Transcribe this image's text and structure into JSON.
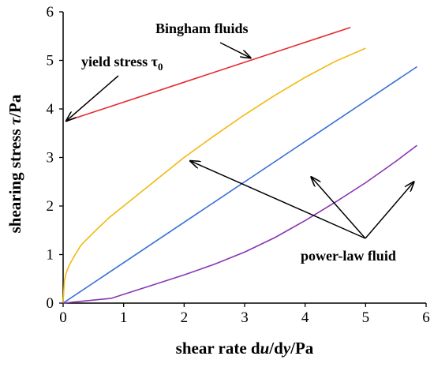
{
  "chart_data": {
    "type": "line",
    "title": "",
    "xlabel": "shear rate  du/dy/Pa",
    "ylabel": "shearing stress  τ/Pa",
    "xlim": [
      0,
      6
    ],
    "ylim": [
      0,
      6
    ],
    "x_ticks": [
      "0",
      "1",
      "2",
      "3",
      "4",
      "5",
      "6"
    ],
    "y_ticks": [
      "0",
      "1",
      "2",
      "3",
      "4",
      "5",
      "6"
    ],
    "grid": false,
    "legend": "none",
    "series": [
      {
        "color": "#e8282b",
        "x": [
          0.05,
          4.75
        ],
        "y": [
          3.75,
          5.68
        ]
      },
      {
        "color": "#f2b90f",
        "x": [
          0.0,
          0.02,
          0.05,
          0.1,
          0.2,
          0.3,
          0.5,
          0.75,
          1.0,
          1.5,
          2.0,
          2.5,
          3.0,
          3.5,
          4.0,
          4.5,
          5.0
        ],
        "y": [
          0.0,
          0.45,
          0.62,
          0.78,
          1.0,
          1.2,
          1.45,
          1.75,
          2.0,
          2.5,
          3.0,
          3.45,
          3.88,
          4.28,
          4.65,
          4.98,
          5.25
        ]
      },
      {
        "color": "#3b6fd8",
        "x": [
          0.0,
          5.85
        ],
        "y": [
          0.0,
          4.87
        ]
      },
      {
        "color": "#8a35b5",
        "x": [
          0.0,
          0.4,
          0.8,
          1.0,
          1.5,
          2.0,
          2.5,
          3.0,
          3.5,
          4.0,
          4.5,
          5.0,
          5.5,
          5.85
        ],
        "y": [
          0.0,
          0.05,
          0.1,
          0.18,
          0.38,
          0.58,
          0.8,
          1.05,
          1.35,
          1.7,
          2.08,
          2.48,
          2.92,
          3.25
        ]
      }
    ],
    "annotations": [
      {
        "text": "Bingham fluids",
        "arrow_to": [
          3.1,
          5.05
        ]
      },
      {
        "text": "yield stress τ0",
        "arrow_to": [
          0.05,
          3.75
        ]
      },
      {
        "text": "power-law fluid",
        "arrows_to": [
          [
            2.1,
            2.93
          ],
          [
            4.1,
            2.6
          ],
          [
            5.8,
            2.5
          ]
        ]
      }
    ]
  }
}
